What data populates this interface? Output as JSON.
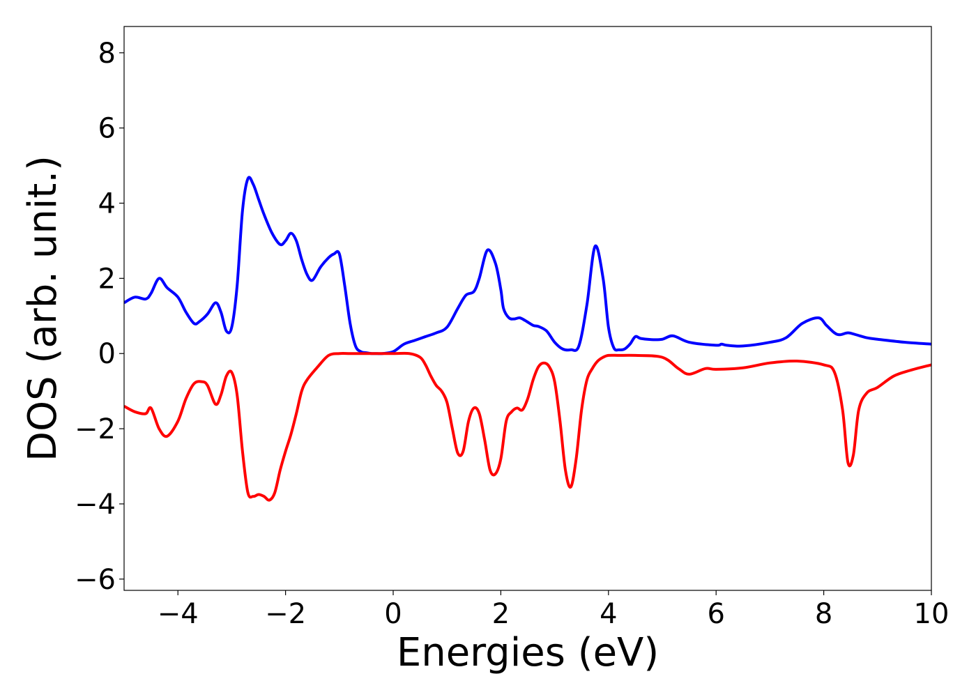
{
  "chart_data": {
    "type": "line",
    "title": "",
    "xlabel": "Energies (eV)",
    "ylabel": "DOS (arb. unit.)",
    "xlim": [
      -5,
      10
    ],
    "ylim": [
      -6.3,
      8.7
    ],
    "grid": false,
    "legend": "none",
    "x_ticks": [
      -4,
      -2,
      0,
      2,
      4,
      6,
      8,
      10
    ],
    "x_tick_labels": [
      "−4",
      "−2",
      "0",
      "2",
      "4",
      "6",
      "8",
      "10"
    ],
    "y_ticks": [
      -6,
      -4,
      -2,
      0,
      2,
      4,
      6,
      8
    ],
    "y_tick_labels": [
      "−6",
      "−4",
      "−2",
      "0",
      "2",
      "4",
      "6",
      "8"
    ],
    "series": [
      {
        "color": "#0000ff",
        "x": [
          -5.0,
          -4.8,
          -4.6,
          -4.5,
          -4.35,
          -4.2,
          -4.0,
          -3.85,
          -3.7,
          -3.6,
          -3.45,
          -3.3,
          -3.2,
          -3.1,
          -3.0,
          -2.9,
          -2.8,
          -2.7,
          -2.6,
          -2.5,
          -2.4,
          -2.25,
          -2.1,
          -2.0,
          -1.9,
          -1.8,
          -1.7,
          -1.6,
          -1.5,
          -1.35,
          -1.2,
          -1.1,
          -1.0,
          -0.9,
          -0.8,
          -0.7,
          -0.6,
          -0.5,
          -0.4,
          -0.3,
          -0.2,
          0.0,
          0.2,
          0.4,
          0.6,
          0.8,
          1.0,
          1.2,
          1.35,
          1.5,
          1.6,
          1.75,
          1.9,
          2.0,
          2.05,
          2.15,
          2.25,
          2.35,
          2.45,
          2.6,
          2.7,
          2.85,
          3.0,
          3.15,
          3.3,
          3.45,
          3.6,
          3.75,
          3.9,
          4.0,
          4.1,
          4.2,
          4.3,
          4.4,
          4.5,
          4.6,
          4.8,
          5.0,
          5.2,
          5.5,
          6.0,
          6.1,
          6.2,
          6.5,
          7.0,
          7.3,
          7.6,
          7.9,
          8.05,
          8.2,
          8.3,
          8.45,
          8.6,
          8.8,
          9.0,
          9.5,
          10.0
        ],
        "values": [
          1.35,
          1.5,
          1.45,
          1.6,
          2.0,
          1.75,
          1.5,
          1.1,
          0.8,
          0.85,
          1.05,
          1.35,
          1.1,
          0.6,
          0.7,
          1.8,
          3.8,
          4.65,
          4.5,
          4.1,
          3.7,
          3.2,
          2.9,
          3.0,
          3.2,
          3.0,
          2.5,
          2.1,
          1.95,
          2.3,
          2.55,
          2.65,
          2.65,
          1.8,
          0.8,
          0.2,
          0.05,
          0.02,
          0.0,
          0.0,
          0.0,
          0.05,
          0.25,
          0.35,
          0.45,
          0.55,
          0.7,
          1.2,
          1.55,
          1.65,
          2.0,
          2.75,
          2.4,
          1.7,
          1.2,
          0.95,
          0.92,
          0.95,
          0.88,
          0.75,
          0.72,
          0.6,
          0.3,
          0.12,
          0.1,
          0.2,
          1.3,
          2.85,
          2.0,
          0.7,
          0.15,
          0.1,
          0.12,
          0.25,
          0.45,
          0.4,
          0.37,
          0.38,
          0.47,
          0.3,
          0.22,
          0.25,
          0.22,
          0.2,
          0.3,
          0.42,
          0.8,
          0.95,
          0.75,
          0.55,
          0.5,
          0.55,
          0.5,
          0.42,
          0.38,
          0.3,
          0.25
        ]
      },
      {
        "color": "#ff0000",
        "x": [
          -5.0,
          -4.8,
          -4.6,
          -4.5,
          -4.35,
          -4.2,
          -4.0,
          -3.85,
          -3.7,
          -3.55,
          -3.45,
          -3.3,
          -3.2,
          -3.1,
          -3.0,
          -2.9,
          -2.8,
          -2.7,
          -2.6,
          -2.5,
          -2.4,
          -2.3,
          -2.2,
          -2.1,
          -2.0,
          -1.9,
          -1.8,
          -1.7,
          -1.6,
          -1.4,
          -1.2,
          -1.0,
          -0.8,
          -0.5,
          0.0,
          0.3,
          0.5,
          0.6,
          0.7,
          0.8,
          0.9,
          1.0,
          1.1,
          1.2,
          1.3,
          1.4,
          1.5,
          1.6,
          1.7,
          1.8,
          1.9,
          2.0,
          2.1,
          2.2,
          2.3,
          2.4,
          2.5,
          2.6,
          2.7,
          2.8,
          2.9,
          3.0,
          3.1,
          3.2,
          3.3,
          3.4,
          3.5,
          3.6,
          3.7,
          3.8,
          3.9,
          4.0,
          4.2,
          4.5,
          5.0,
          5.3,
          5.5,
          5.8,
          6.0,
          6.5,
          7.0,
          7.5,
          8.0,
          8.2,
          8.35,
          8.45,
          8.55,
          8.65,
          8.8,
          9.0,
          9.3,
          9.6,
          10.0
        ],
        "values": [
          -1.4,
          -1.55,
          -1.6,
          -1.45,
          -2.0,
          -2.2,
          -1.8,
          -1.2,
          -0.8,
          -0.75,
          -0.85,
          -1.35,
          -1.1,
          -0.6,
          -0.5,
          -1.1,
          -2.6,
          -3.7,
          -3.8,
          -3.75,
          -3.8,
          -3.9,
          -3.7,
          -3.1,
          -2.6,
          -2.15,
          -1.6,
          -1.0,
          -0.7,
          -0.35,
          -0.05,
          0.0,
          0.0,
          0.0,
          0.0,
          0.0,
          -0.1,
          -0.3,
          -0.6,
          -0.85,
          -1.0,
          -1.3,
          -2.0,
          -2.65,
          -2.6,
          -1.8,
          -1.45,
          -1.6,
          -2.3,
          -3.1,
          -3.2,
          -2.8,
          -1.8,
          -1.55,
          -1.45,
          -1.5,
          -1.2,
          -0.7,
          -0.35,
          -0.25,
          -0.35,
          -0.75,
          -1.8,
          -3.1,
          -3.55,
          -2.8,
          -1.5,
          -0.7,
          -0.4,
          -0.2,
          -0.1,
          -0.05,
          -0.05,
          -0.05,
          -0.1,
          -0.4,
          -0.55,
          -0.4,
          -0.42,
          -0.38,
          -0.25,
          -0.2,
          -0.3,
          -0.5,
          -1.5,
          -2.9,
          -2.7,
          -1.5,
          -1.05,
          -0.9,
          -0.6,
          -0.45,
          -0.3
        ]
      }
    ]
  }
}
